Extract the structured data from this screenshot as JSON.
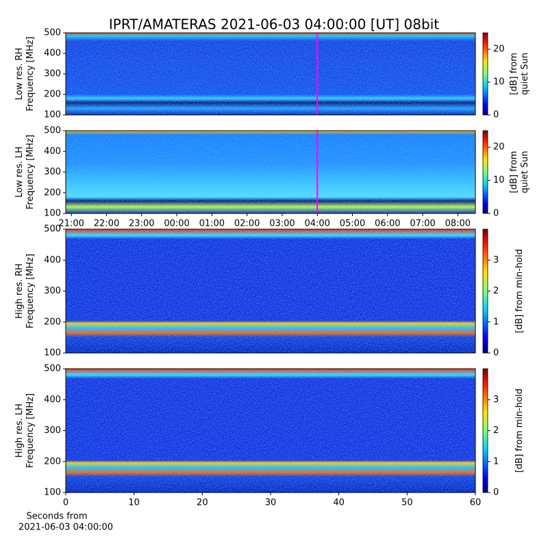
{
  "title": "IPRT/AMATERAS 2021-06-03 04:00:00 [UT]   08bit",
  "chart_data": [
    {
      "type": "heatmap",
      "ylabel": [
        "Low res. RH",
        "Frequency [MHz]"
      ],
      "ylim": [
        100,
        500
      ],
      "yticks": [
        100,
        200,
        300,
        400,
        500
      ],
      "xlim": [
        20.84,
        32.5
      ],
      "marker_x": 28,
      "marker_color": "#ff00ff",
      "colorbar": {
        "label": [
          "[dB] from",
          "quiet Sun"
        ],
        "lim": [
          0,
          25
        ],
        "ticks": [
          0,
          10,
          20
        ]
      }
    },
    {
      "type": "heatmap",
      "ylabel": [
        "Low res. LH",
        "Frequency [MHz]"
      ],
      "ylim": [
        100,
        500
      ],
      "yticks": [
        100,
        200,
        300,
        400,
        500
      ],
      "xlim": [
        20.84,
        32.5
      ],
      "marker_x": 28,
      "marker_color": "#ff00ff",
      "xticks": [
        {
          "value": 21,
          "label": "21:00"
        },
        {
          "value": 22,
          "label": "22:00"
        },
        {
          "value": 23,
          "label": "23:00"
        },
        {
          "value": 24,
          "label": "00:00"
        },
        {
          "value": 25,
          "label": "01:00"
        },
        {
          "value": 26,
          "label": "02:00"
        },
        {
          "value": 27,
          "label": "03:00"
        },
        {
          "value": 28,
          "label": "04:00"
        },
        {
          "value": 29,
          "label": "05:00"
        },
        {
          "value": 30,
          "label": "06:00"
        },
        {
          "value": 31,
          "label": "07:00"
        },
        {
          "value": 32,
          "label": "08:00"
        }
      ],
      "colorbar": {
        "label": [
          "[dB] from",
          "quiet Sun"
        ],
        "lim": [
          0,
          25
        ],
        "ticks": [
          0,
          10,
          20
        ]
      }
    },
    {
      "type": "heatmap",
      "ylabel": [
        "High res. RH",
        "Frequency [MHz]"
      ],
      "ylim": [
        100,
        500
      ],
      "yticks": [
        100,
        200,
        300,
        400,
        500
      ],
      "xlim": [
        0,
        60
      ],
      "colorbar": {
        "label": [
          "[dB] from min-hold"
        ],
        "lim": [
          0,
          4
        ],
        "ticks": [
          0,
          1,
          2,
          3
        ]
      }
    },
    {
      "type": "heatmap",
      "ylabel": [
        "High res. LH",
        "Frequency [MHz]"
      ],
      "ylim": [
        100,
        500
      ],
      "yticks": [
        100,
        200,
        300,
        400,
        500
      ],
      "xlim": [
        0,
        60
      ],
      "xticks": [
        0,
        10,
        20,
        30,
        40,
        50,
        60
      ],
      "xlabel": [
        "Seconds from",
        "2021-06-03 04:00:00"
      ],
      "colorbar": {
        "label": [
          "[dB] from min-hold"
        ],
        "lim": [
          0,
          4
        ],
        "ticks": [
          0,
          1,
          2,
          3
        ]
      }
    }
  ]
}
